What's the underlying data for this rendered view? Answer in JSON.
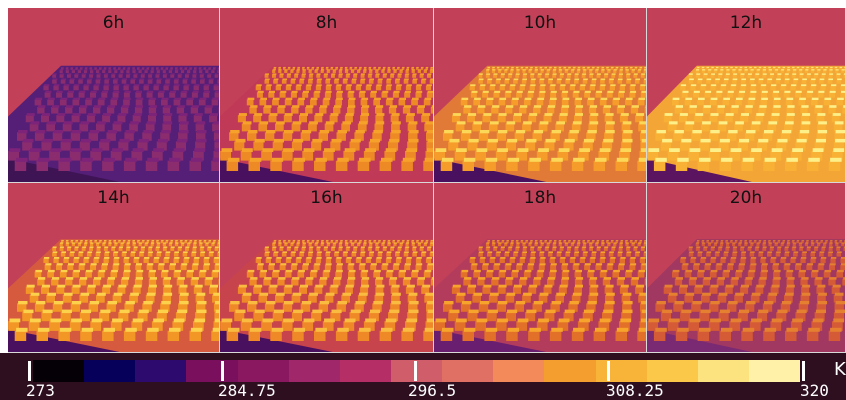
{
  "panels": [
    {
      "label": "6h",
      "sky": "#c24058",
      "roof": "#7d247a",
      "wall": "#8a2c6e",
      "ground": "#551f78",
      "shade": "#3e1455"
    },
    {
      "label": "8h",
      "sky": "#c24058",
      "roof": "#f6a22a",
      "wall": "#ee8a26",
      "ground": "#c03a58",
      "shade": "#4a1060"
    },
    {
      "label": "10h",
      "sky": "#c24058",
      "roof": "#fcd858",
      "wall": "#f59c2a",
      "ground": "#e07a36",
      "shade": "#4a1060"
    },
    {
      "label": "12h",
      "sky": "#c24058",
      "roof": "#fdf088",
      "wall": "#f8b035",
      "ground": "#f3a636",
      "shade": "#5a1460"
    },
    {
      "label": "14h",
      "sky": "#c24058",
      "roof": "#fcd24c",
      "wall": "#f29626",
      "ground": "#d55a3e",
      "shade": "#4a1060"
    },
    {
      "label": "16h",
      "sky": "#c24058",
      "roof": "#f9bc40",
      "wall": "#ef8826",
      "ground": "#c8444c",
      "shade": "#4a1060"
    },
    {
      "label": "18h",
      "sky": "#c24058",
      "roof": "#f6a42c",
      "wall": "#e27028",
      "ground": "#b33c5c",
      "shade": "#6a1e70"
    },
    {
      "label": "20h",
      "sky": "#c24058",
      "roof": "#e48030",
      "wall": "#d55a36",
      "ground": "#a03862",
      "shade": "#7a2a72"
    }
  ],
  "colorbar": {
    "ticks": [
      "273",
      "284.75",
      "296.5",
      "308.25",
      "320"
    ],
    "unit": "K",
    "colors": [
      "#050005",
      "#06005a",
      "#2c0a6e",
      "#7a0f5e",
      "#8a1860",
      "#a0286a",
      "#b62e66",
      "#d05e6a",
      "#e07064",
      "#f28a5a",
      "#f59e30",
      "#f7b438",
      "#fbc84a",
      "#fde280",
      "#fff1a8"
    ]
  }
}
